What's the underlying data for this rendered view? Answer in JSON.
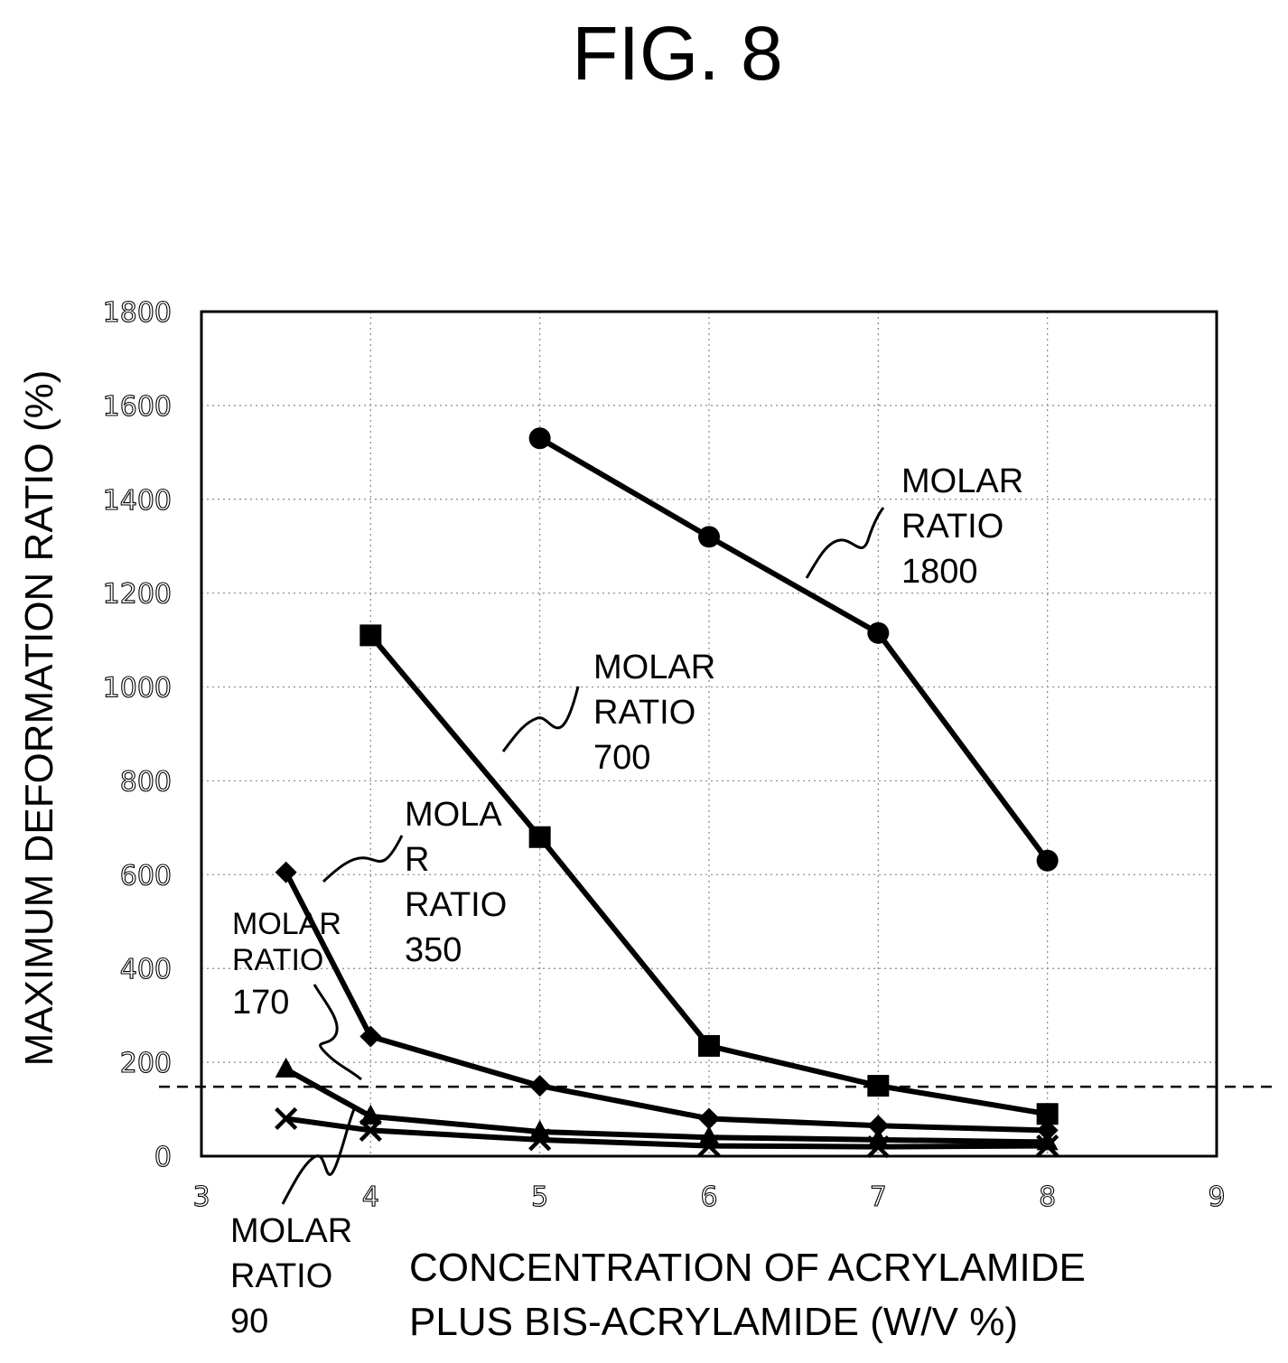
{
  "figure": {
    "title": "FIG. 8"
  },
  "chart_data": {
    "type": "line",
    "xlabel": [
      "CONCENTRATION OF ACRYLAMIDE",
      "PLUS BIS-ACRYLAMIDE (W/V %)"
    ],
    "ylabel": "MAXIMUM DEFORMATION RATIO (%)",
    "xlim": [
      3,
      9
    ],
    "ylim": [
      0,
      1800
    ],
    "x_ticks": [
      3,
      4,
      5,
      6,
      7,
      8,
      9
    ],
    "y_ticks": [
      0,
      200,
      400,
      600,
      800,
      1000,
      1200,
      1400,
      1600,
      1800
    ],
    "grid": true,
    "reference_line": {
      "y": 148,
      "style": "dashed"
    },
    "series": [
      {
        "marker": "circle",
        "label": [
          "MOLAR",
          "RATIO",
          "1800"
        ],
        "x": [
          5,
          6,
          7,
          8
        ],
        "y": [
          1530,
          1320,
          1115,
          630
        ]
      },
      {
        "marker": "square",
        "label": [
          "MOLAR",
          "RATIO",
          "700"
        ],
        "x": [
          4,
          5,
          6,
          7,
          8
        ],
        "y": [
          1110,
          680,
          235,
          150,
          90
        ]
      },
      {
        "marker": "diamond",
        "label": [
          "MOLA",
          "R",
          "RATIO",
          "350"
        ],
        "x": [
          3.5,
          4,
          5,
          6,
          7,
          8
        ],
        "y": [
          605,
          255,
          150,
          80,
          65,
          55
        ]
      },
      {
        "marker": "triangle",
        "label": [
          "MOLAR",
          "RATIO",
          "170"
        ],
        "x": [
          3.5,
          4,
          5,
          6,
          7,
          8
        ],
        "y": [
          185,
          85,
          52,
          40,
          35,
          30
        ]
      },
      {
        "marker": "x",
        "label": [
          "MOLAR",
          "RATIO",
          "90"
        ],
        "x": [
          3.5,
          4,
          5,
          6,
          7,
          8
        ],
        "y": [
          80,
          55,
          35,
          22,
          20,
          22
        ]
      }
    ]
  }
}
